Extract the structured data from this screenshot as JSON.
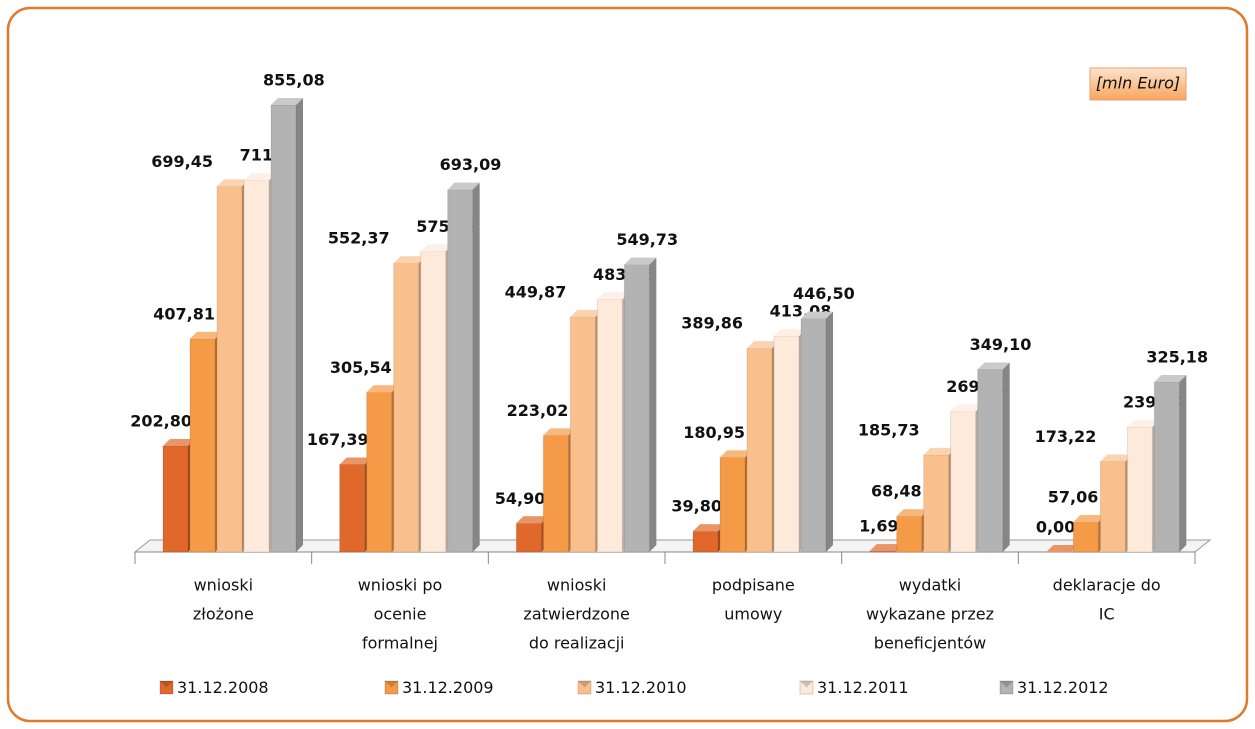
{
  "chart_data": {
    "type": "bar3d",
    "note": "[mln Euro]",
    "categories": [
      [
        "wnioski",
        "złożone"
      ],
      [
        "wnioski po",
        "ocenie",
        "formalnej"
      ],
      [
        "wnioski",
        "zatwierdzone",
        "do realizacji"
      ],
      [
        "podpisane",
        "umowy"
      ],
      [
        "wydatki",
        "wykazane przez",
        "beneficjentów"
      ],
      [
        "deklaracje do",
        "IC"
      ]
    ],
    "series": [
      {
        "name": "31.12.2008",
        "color": "#e0682a",
        "values": [
          202.8,
          167.39,
          54.9,
          39.8,
          1.69,
          0.0
        ],
        "value_labels": [
          "202,80",
          "167,39",
          "54,90",
          "39,80",
          "1,69",
          "0,00"
        ]
      },
      {
        "name": "31.12.2009",
        "color": "#f59a46",
        "values": [
          407.81,
          305.54,
          223.02,
          180.95,
          68.48,
          57.06
        ],
        "value_labels": [
          "407,81",
          "305,54",
          "223,02",
          "180,95",
          "68,48",
          "57,06"
        ]
      },
      {
        "name": "31.12.2010",
        "color": "#f9c08e",
        "values": [
          699.45,
          552.37,
          449.87,
          389.86,
          185.73,
          173.22
        ],
        "value_labels": [
          "699,45",
          "552,37",
          "449,87",
          "389,86",
          "185,73",
          "173,22"
        ]
      },
      {
        "name": "31.12.2011",
        "color": "#fdeadb",
        "values": [
          711.18,
          575.09,
          483.43,
          413.08,
          269.1,
          239.04
        ],
        "value_labels": [
          "711,18",
          "575,09",
          "483,43",
          "413,08",
          "269,10",
          "239,04"
        ]
      },
      {
        "name": "31.12.2012",
        "color": "#b3b3b3",
        "values": [
          855.08,
          693.09,
          549.73,
          446.5,
          349.1,
          325.18
        ],
        "value_labels": [
          "855,08",
          "693,09",
          "549,73",
          "446,50",
          "349,10",
          "325,18"
        ]
      }
    ],
    "legend": "bottom"
  }
}
